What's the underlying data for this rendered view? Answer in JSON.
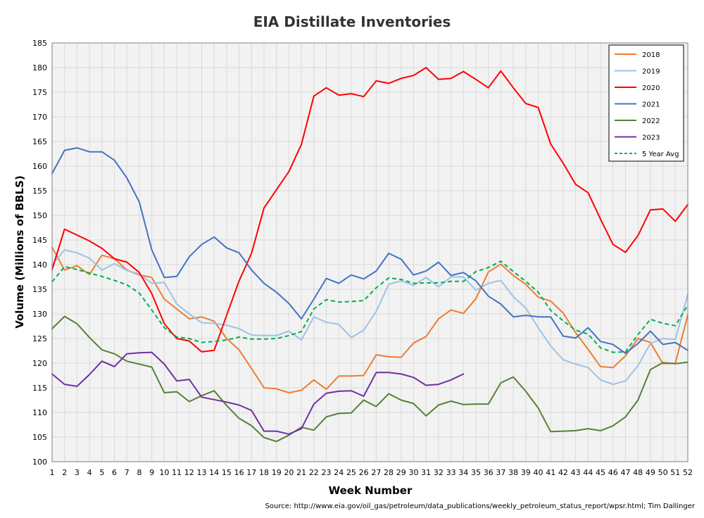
{
  "chart_data": {
    "type": "line",
    "title": "EIA Distillate Inventories",
    "xlabel": "Week Number",
    "ylabel": "Volume (Millions of BBLS)",
    "source": "Source: http://www.eia.gov/oil_gas/petroleum/data_publications/weekly_petroleum_status_report/wpsr.html; Tim Dallinger",
    "xlim": [
      1,
      52
    ],
    "ylim": [
      100,
      185
    ],
    "yticks": [
      100,
      105,
      110,
      115,
      120,
      125,
      130,
      135,
      140,
      145,
      150,
      155,
      160,
      165,
      170,
      175,
      180,
      185
    ],
    "x": [
      1,
      2,
      3,
      4,
      5,
      6,
      7,
      8,
      9,
      10,
      11,
      12,
      13,
      14,
      15,
      16,
      17,
      18,
      19,
      20,
      21,
      22,
      23,
      24,
      25,
      26,
      27,
      28,
      29,
      30,
      31,
      32,
      33,
      34,
      35,
      36,
      37,
      38,
      39,
      40,
      41,
      42,
      43,
      44,
      45,
      46,
      47,
      48,
      49,
      50,
      51,
      52
    ],
    "grid": true,
    "legend_position": "top-right",
    "series": [
      {
        "name": "2018",
        "color": "#ED7D31",
        "dashed": false,
        "values": [
          143.5,
          138.9,
          139.8,
          138.0,
          141.9,
          141.2,
          138.9,
          137.9,
          137.4,
          133.0,
          131.0,
          129.0,
          129.4,
          128.5,
          125.0,
          122.7,
          118.9,
          115.0,
          114.8,
          114.0,
          114.5,
          116.6,
          114.7,
          117.4,
          117.4,
          117.5,
          121.7,
          121.3,
          121.2,
          124.1,
          125.4,
          129.0,
          130.8,
          130.1,
          133.1,
          138.5,
          140.1,
          137.8,
          136.0,
          133.4,
          132.6,
          130.2,
          126.2,
          122.8,
          119.3,
          119.1,
          121.5,
          125.0,
          124.2,
          119.9,
          120.0,
          129.8
        ]
      },
      {
        "name": "2019",
        "color": "#9DC3E6",
        "dashed": false,
        "values": [
          140.0,
          143.0,
          142.4,
          141.3,
          138.9,
          140.2,
          138.8,
          138.1,
          136.2,
          136.4,
          132.0,
          130.0,
          128.2,
          128.1,
          127.7,
          127.0,
          125.7,
          125.6,
          125.6,
          126.5,
          124.7,
          129.4,
          128.3,
          127.9,
          125.2,
          126.7,
          130.5,
          136.0,
          136.7,
          135.8,
          137.4,
          135.5,
          137.5,
          137.5,
          134.8,
          136.2,
          136.8,
          133.5,
          131.2,
          127.2,
          123.5,
          120.7,
          119.8,
          119.1,
          116.6,
          115.7,
          116.4,
          119.5,
          124.0,
          125.0,
          124.8,
          134.0
        ]
      },
      {
        "name": "2020",
        "color": "#FF0000",
        "dashed": false,
        "values": [
          139.0,
          147.2,
          146.0,
          144.8,
          143.3,
          141.2,
          140.5,
          138.4,
          134.1,
          128.0,
          125.0,
          124.5,
          122.3,
          122.6,
          129.7,
          136.7,
          142.3,
          151.5,
          155.2,
          158.9,
          164.4,
          174.2,
          175.9,
          174.4,
          174.7,
          174.1,
          177.3,
          176.8,
          177.8,
          178.4,
          180.0,
          177.6,
          177.8,
          179.2,
          177.6,
          175.9,
          179.3,
          175.9,
          172.7,
          171.9,
          164.5,
          160.6,
          156.3,
          154.6,
          149.2,
          144.1,
          142.5,
          145.9,
          151.1,
          151.3,
          148.8,
          152.2
        ]
      },
      {
        "name": "2021",
        "color": "#4472C4",
        "dashed": false,
        "values": [
          158.5,
          163.2,
          163.7,
          162.9,
          162.9,
          161.2,
          157.6,
          152.7,
          143.0,
          137.4,
          137.6,
          141.6,
          144.1,
          145.6,
          143.4,
          142.4,
          138.9,
          136.2,
          134.4,
          132.1,
          129.0,
          133.0,
          137.2,
          136.2,
          137.9,
          137.1,
          138.7,
          142.3,
          141.1,
          137.9,
          138.7,
          140.5,
          137.8,
          138.4,
          136.7,
          133.6,
          132.0,
          129.4,
          129.7,
          129.4,
          129.4,
          125.5,
          125.1,
          127.2,
          124.4,
          123.8,
          122.0,
          124.0,
          126.5,
          123.8,
          124.2,
          122.6
        ]
      },
      {
        "name": "2022",
        "color": "#548235",
        "dashed": false,
        "values": [
          127.0,
          129.5,
          128.0,
          125.2,
          122.7,
          121.9,
          120.4,
          119.8,
          119.2,
          114.0,
          114.2,
          112.2,
          113.4,
          114.4,
          111.4,
          108.8,
          107.3,
          104.9,
          104.1,
          105.4,
          107.0,
          106.4,
          109.1,
          109.8,
          109.9,
          112.5,
          111.2,
          113.8,
          112.5,
          111.8,
          109.3,
          111.5,
          112.3,
          111.6,
          111.7,
          111.7,
          116.0,
          117.2,
          114.3,
          110.9,
          106.1,
          106.2,
          106.3,
          106.7,
          106.3,
          107.3,
          109.1,
          112.5,
          118.7,
          120.1,
          119.9,
          120.2
        ]
      },
      {
        "name": "2023",
        "color": "#7030A0",
        "dashed": false,
        "values": [
          117.8,
          115.7,
          115.3,
          117.7,
          120.4,
          119.3,
          121.9,
          122.1,
          122.2,
          119.8,
          116.4,
          116.7,
          113.1,
          112.6,
          112.1,
          111.5,
          110.4,
          106.2,
          106.2,
          105.6,
          106.7,
          111.7,
          113.9,
          114.3,
          114.4,
          113.3,
          118.1,
          118.1,
          117.8,
          117.1,
          115.5,
          115.7,
          116.6,
          117.8,
          null,
          null,
          null,
          null,
          null,
          null,
          null,
          null,
          null,
          null,
          null,
          null,
          null,
          null,
          null,
          null,
          null,
          null
        ]
      },
      {
        "name": "5 Year Avg",
        "color": "#00B050",
        "dashed": true,
        "values": [
          136.5,
          139.6,
          139.0,
          138.3,
          137.6,
          136.8,
          135.9,
          134.2,
          130.8,
          127.2,
          125.3,
          125.0,
          124.2,
          124.4,
          124.7,
          125.3,
          124.9,
          124.9,
          125.0,
          125.6,
          126.4,
          131.0,
          132.9,
          132.4,
          132.5,
          132.7,
          135.3,
          137.3,
          137.0,
          136.2,
          136.3,
          136.3,
          136.6,
          136.6,
          138.6,
          139.4,
          140.7,
          138.6,
          136.6,
          134.4,
          130.7,
          128.6,
          126.7,
          125.9,
          123.1,
          122.2,
          122.3,
          125.8,
          128.9,
          128.1,
          127.6,
          131.8
        ]
      }
    ]
  }
}
